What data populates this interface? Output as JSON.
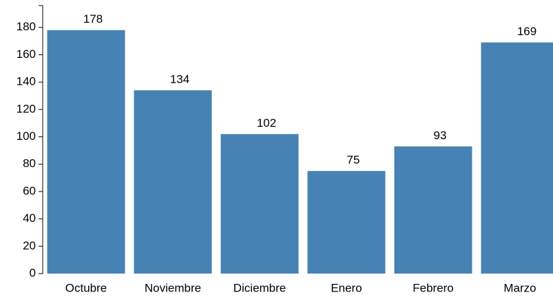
{
  "chart_data": {
    "type": "bar",
    "categories": [
      "Octubre",
      "Noviembre",
      "Diciembre",
      "Enero",
      "Febrero",
      "Marzo"
    ],
    "values": [
      178,
      134,
      102,
      75,
      93,
      169
    ],
    "color": "#4682b4",
    "ylim": [
      0,
      196
    ],
    "yticks": [
      0,
      20,
      40,
      60,
      80,
      100,
      120,
      140,
      160,
      180
    ]
  }
}
